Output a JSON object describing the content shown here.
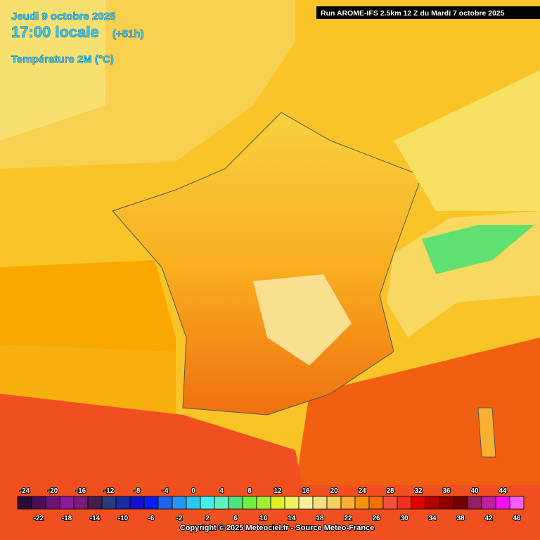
{
  "header": {
    "date": "Jeudi 9 octobre 2025",
    "time": "17:00 locale",
    "lead": "(+51h)",
    "parameter": "Température 2M (°C)",
    "run": "Run AROME-IFS 2.5km 12 Z du Mardi 7 octobre 2025"
  },
  "legend": {
    "values": [
      -24,
      -22,
      -20,
      -18,
      -16,
      -14,
      -12,
      -10,
      -8,
      -6,
      -4,
      -2,
      0,
      2,
      4,
      6,
      8,
      10,
      12,
      14,
      16,
      18,
      20,
      22,
      24,
      26,
      28,
      30,
      32,
      34,
      36,
      38,
      40,
      42,
      44,
      46
    ],
    "colors": [
      "#2d0a35",
      "#4b0e55",
      "#6a1478",
      "#8a1a9a",
      "#7a1a7a",
      "#4a1c4e",
      "#2a3a7a",
      "#1a2aa0",
      "#1010d0",
      "#0a1ef0",
      "#1e64f0",
      "#2896f0",
      "#28c8f0",
      "#40f0f0",
      "#60f0c0",
      "#50e080",
      "#70f040",
      "#a0f030",
      "#e0f020",
      "#f0f060",
      "#f8f0a0",
      "#f8e080",
      "#f8d060",
      "#f8b030",
      "#f89010",
      "#f07000",
      "#f05040",
      "#f03020",
      "#e00000",
      "#b00000",
      "#900000",
      "#700000",
      "#902060",
      "#c020a0",
      "#f010f0",
      "#f060f0"
    ]
  },
  "footer": {
    "copyright": "Copyright © 2025 Meteociel.fr - Source Meteo-France"
  }
}
